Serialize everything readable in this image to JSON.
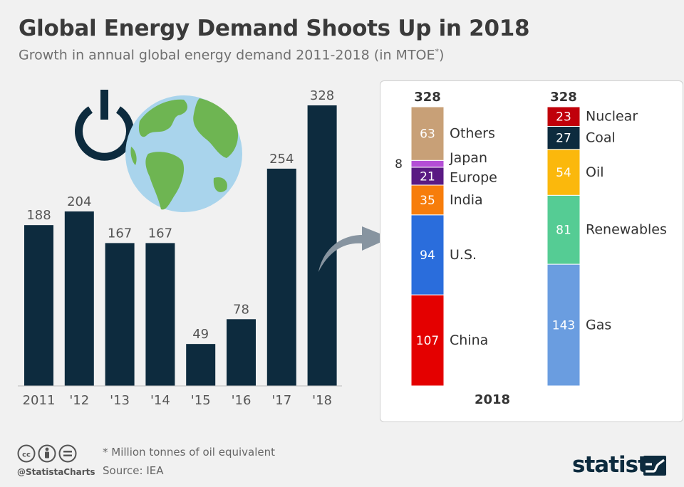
{
  "title": "Global Energy Demand Shoots Up in 2018",
  "subtitle": "Growth in annual global energy demand 2011-2018 (in MTOE",
  "subtitle_mark": "*",
  "subtitle_end": ")",
  "footer": {
    "footnote": "* Million tonnes of oil equivalent",
    "source": "Source: IEA",
    "handle": "@StatistaCharts",
    "brand": "statista"
  },
  "icons": [
    "power-icon",
    "globe-icon",
    "arrow-icon",
    "cc-icon",
    "by-icon",
    "equal-icon",
    "statista-logo-icon"
  ],
  "colors": {
    "bar": "#0d2b3e",
    "background": "#f1f1f1"
  },
  "chart_data": [
    {
      "type": "bar",
      "categories": [
        "2011",
        "'12",
        "'13",
        "'14",
        "'15",
        "'16",
        "'17",
        "'18"
      ],
      "values": [
        188,
        204,
        167,
        167,
        49,
        78,
        254,
        328
      ],
      "ylim": [
        0,
        350
      ],
      "grid": false,
      "color": "#0d2b3e"
    },
    {
      "type": "bar",
      "stacked": true,
      "category": "2018",
      "stacks": [
        {
          "total": 328,
          "segments": [
            {
              "label": "China",
              "value": 107,
              "color": "#e40000"
            },
            {
              "label": "U.S.",
              "value": 94,
              "color": "#2a6ddc"
            },
            {
              "label": "India",
              "value": 35,
              "color": "#f77d0b"
            },
            {
              "label": "Europe",
              "value": 21,
              "color": "#5a1a83"
            },
            {
              "label": "Japan",
              "value": 8,
              "color": "#b44ed6"
            },
            {
              "label": "Others",
              "value": 63,
              "color": "#c8a077"
            }
          ]
        },
        {
          "total": 328,
          "segments": [
            {
              "label": "Gas",
              "value": 143,
              "color": "#6a9de0"
            },
            {
              "label": "Renewables",
              "value": 81,
              "color": "#55cc94"
            },
            {
              "label": "Oil",
              "value": 54,
              "color": "#fbb80c"
            },
            {
              "label": "Coal",
              "value": 27,
              "color": "#0d2b3e"
            },
            {
              "label": "Nuclear",
              "value": 23,
              "color": "#c0000a"
            }
          ]
        }
      ]
    }
  ]
}
